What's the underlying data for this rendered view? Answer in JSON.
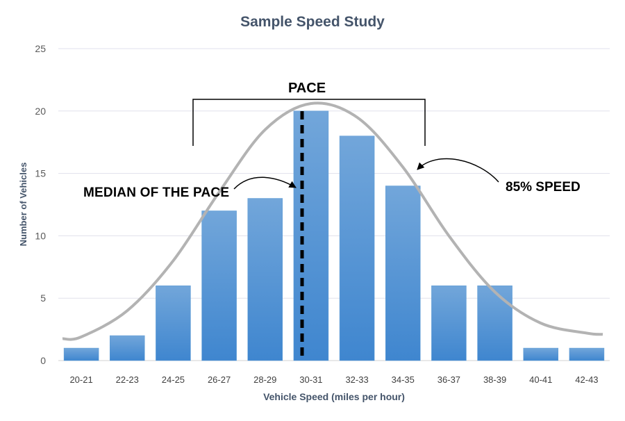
{
  "chart_data": {
    "type": "bar",
    "title": "Sample Speed Study",
    "xlabel": "Vehicle Speed (miles per hour)",
    "ylabel": "Number of Vehicles",
    "ylim": [
      0,
      25
    ],
    "yticks": [
      "0",
      "5",
      "10",
      "15",
      "20",
      "25"
    ],
    "grid": true,
    "categories": [
      "20-21",
      "22-23",
      "24-25",
      "26-27",
      "28-29",
      "30-31",
      "32-33",
      "34-35",
      "36-37",
      "38-39",
      "40-41",
      "42-43"
    ],
    "values": [
      1,
      2,
      6,
      12,
      13,
      20,
      18,
      14,
      6,
      6,
      1,
      1
    ],
    "curve_values": [
      1.9,
      4,
      8,
      13.5,
      18.5,
      20.6,
      19.5,
      15.5,
      10,
      5.5,
      3,
      2.2
    ],
    "bar_color": "#5b9bd5",
    "curve_color": "#b3b3b3",
    "annotations": {
      "pace": "PACE",
      "median": "MEDIAN OF THE PACE",
      "speed85": "85% SPEED"
    }
  }
}
